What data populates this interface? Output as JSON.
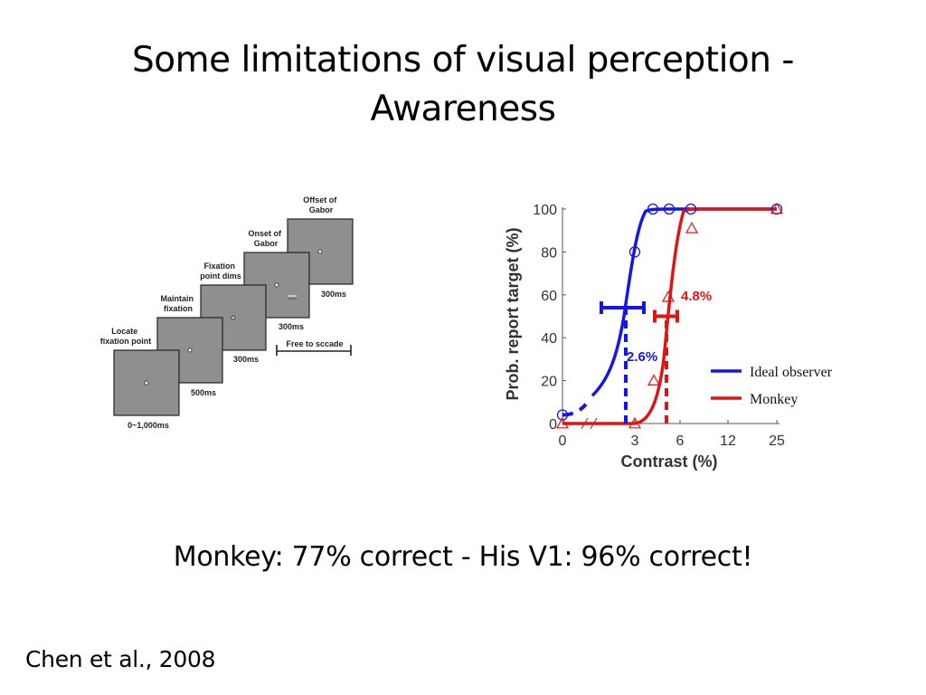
{
  "slide": {
    "title_lines": [
      "Some limitations of visual perception -",
      "Awareness"
    ],
    "caption": "Monkey: 77% correct - His V1: 96% correct!",
    "citation": "Chen et al., 2008"
  },
  "task_diagram": {
    "screen_color": "#8f8f8f",
    "stages": [
      {
        "label": [
          "Locate",
          "fixation point"
        ],
        "duration": "0~1,000ms"
      },
      {
        "label": [
          "Maintain",
          "fixation"
        ],
        "duration": "500ms"
      },
      {
        "label": [
          "Fixation",
          "point dims"
        ],
        "duration": "300ms"
      },
      {
        "label": [
          "Onset of",
          "Gabor"
        ],
        "duration": "300ms"
      },
      {
        "label": [
          "Offset of",
          "Gabor"
        ],
        "duration": "300ms"
      }
    ],
    "free_saccade_label": "Free to sccade"
  },
  "chart_data": {
    "type": "line",
    "xlabel": "Contrast (%)",
    "ylabel": "Prob. report target (%)",
    "x_ticks": [
      "0",
      "3",
      "6",
      "12",
      "25"
    ],
    "y_ticks": [
      0,
      20,
      40,
      60,
      80,
      100
    ],
    "ylim": [
      0,
      100
    ],
    "x_axis_break": true,
    "legend": {
      "position": "right",
      "entries": [
        "Ideal observer",
        "Monkey"
      ]
    },
    "series": [
      {
        "name": "Ideal observer",
        "color": "#1515e6",
        "marker": "circle",
        "points": [
          {
            "x": 0,
            "y": 4
          },
          {
            "x": 3,
            "y": 80
          },
          {
            "x": 4,
            "y": 100
          },
          {
            "x": 5,
            "y": 100
          },
          {
            "x": 7,
            "y": 100
          },
          {
            "x": 25,
            "y": 100
          }
        ],
        "threshold": {
          "x": 2.6,
          "label": "2.6%",
          "y_level": 54
        }
      },
      {
        "name": "Monkey",
        "color": "#dd1515",
        "marker": "triangle",
        "points": [
          {
            "x": 0,
            "y": 0
          },
          {
            "x": 3,
            "y": 0
          },
          {
            "x": 4,
            "y": 20
          },
          {
            "x": 5,
            "y": 59
          },
          {
            "x": 7,
            "y": 91
          },
          {
            "x": 25,
            "y": 100
          }
        ],
        "threshold": {
          "x": 4.8,
          "label": "4.8%",
          "y_level": 50
        }
      }
    ]
  }
}
